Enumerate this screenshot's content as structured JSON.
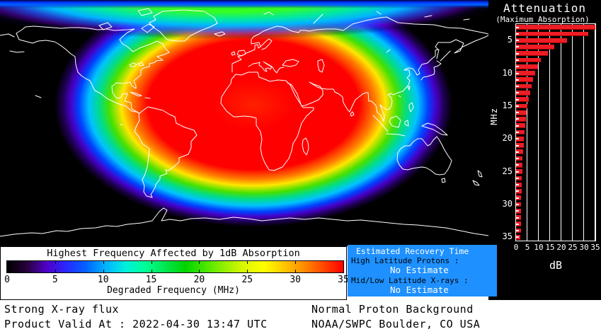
{
  "attenuation_panel": {
    "title": "Attenuation",
    "subtitle": "(Maximum Absorption)",
    "x_axis_label": "dB",
    "y_axis_label": "MHz",
    "x_ticks": [
      0,
      5,
      10,
      15,
      20,
      25,
      30,
      35
    ],
    "y_ticks": [
      5,
      10,
      15,
      20,
      25,
      30,
      35
    ]
  },
  "chart_data": {
    "type": "bar",
    "orientation": "horizontal",
    "title": "Attenuation (Maximum Absorption)",
    "xlabel": "dB",
    "ylabel": "MHz",
    "xlim": [
      0,
      35
    ],
    "grid": true,
    "categories_mhz": [
      3,
      4,
      5,
      6,
      7,
      8,
      9,
      10,
      11,
      12,
      13,
      14,
      15,
      16,
      17,
      18,
      19,
      20,
      21,
      22,
      23,
      24,
      25,
      26,
      27,
      28,
      29,
      30,
      31,
      32,
      33,
      34,
      35
    ],
    "values_db": [
      35.0,
      32.0,
      22.5,
      17.0,
      14.0,
      11.0,
      9.7,
      8.4,
      7.6,
      6.9,
      6.2,
      5.6,
      5.1,
      4.7,
      4.3,
      4.0,
      3.7,
      3.5,
      3.3,
      3.1,
      2.9,
      2.8,
      2.7,
      2.6,
      2.5,
      2.4,
      2.3,
      2.25,
      2.2,
      2.15,
      2.1,
      2.05,
      2.0
    ],
    "bar_color": "#ee1c25"
  },
  "frequency_legend": {
    "title": "Highest Frequency Affected by 1dB Absorption",
    "axis_label": "Degraded Frequency (MHz)",
    "ticks": [
      0,
      5,
      10,
      15,
      20,
      25,
      30,
      35
    ],
    "max_mhz": 35,
    "gradient_colors": [
      "#000000",
      "#28003c",
      "#5000c8",
      "#2828ff",
      "#0064ff",
      "#00b4ff",
      "#00f0dc",
      "#00ff96",
      "#00e650",
      "#00d200",
      "#46e600",
      "#96f000",
      "#dcf800",
      "#ffff00",
      "#ffc800",
      "#ff8c00",
      "#ff4600",
      "#ff0000"
    ]
  },
  "recovery_box": {
    "title": "Estimated Recovery Time",
    "rows": [
      {
        "label": "High Latitude Protons :",
        "value": "No Estimate"
      },
      {
        "label": "Mid/Low Latitude X-rays :",
        "value": "No Estimate"
      }
    ],
    "background": "#1e90ff"
  },
  "status_footer": {
    "xray_status": "Strong X-ray flux",
    "valid_time": "Product Valid At : 2022-04-30 13:47 UTC",
    "proton_status": "Normal Proton Background",
    "source": "NOAA/SWPC Boulder, CO USA"
  },
  "colors": {
    "map_background": "#000000",
    "coastline": "#ffffff",
    "bar_red": "#ee1c25",
    "recovery_blue": "#1e90ff",
    "absorption_scale": [
      "black",
      "purple",
      "blue",
      "cyan",
      "green",
      "yellow",
      "orange",
      "red"
    ]
  }
}
